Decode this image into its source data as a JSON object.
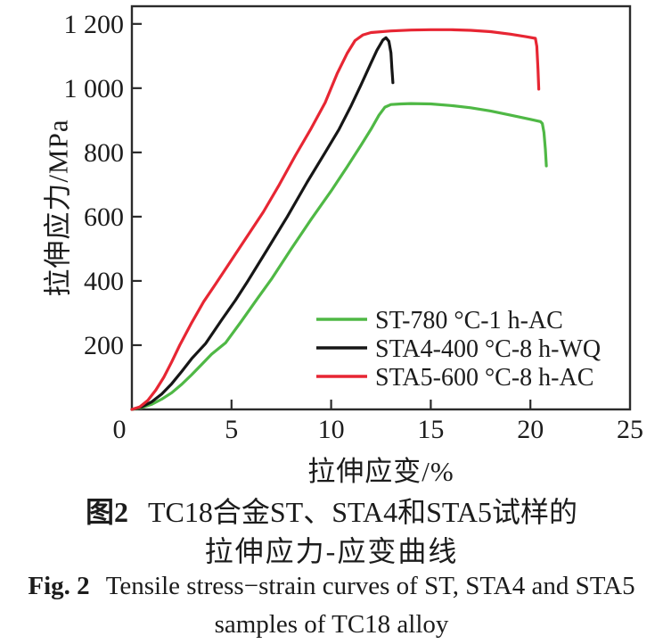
{
  "chart_data": {
    "type": "line",
    "title": "",
    "xlabel": "拉伸应变/%",
    "ylabel": "拉伸应力/MPa",
    "xlim": [
      0,
      25
    ],
    "ylim": [
      0,
      1255
    ],
    "x_ticks": [
      0,
      5,
      10,
      15,
      20,
      25
    ],
    "x_tick_labels": [
      "0",
      "5",
      "10",
      "15",
      "20",
      "25"
    ],
    "y_ticks": [
      200,
      400,
      600,
      800,
      1000,
      1200
    ],
    "y_tick_labels": [
      "200",
      "400",
      "600",
      "800",
      "1 000",
      "1 200"
    ],
    "grid": false,
    "frame_color": "#2b2b2b",
    "legend_position": "inside-bottom-right",
    "series": [
      {
        "id": "st-780",
        "name": "ST-780 °C-1 h-AC",
        "color": "#4fb845",
        "points": [
          [
            0,
            0
          ],
          [
            0.5,
            6
          ],
          [
            1,
            16
          ],
          [
            1.5,
            32
          ],
          [
            2,
            52
          ],
          [
            2.5,
            78
          ],
          [
            3,
            108
          ],
          [
            3.5,
            140
          ],
          [
            4,
            172
          ],
          [
            4.7,
            207
          ],
          [
            5.5,
            275
          ],
          [
            6.3,
            345
          ],
          [
            7,
            405
          ],
          [
            8,
            500
          ],
          [
            9,
            592
          ],
          [
            10,
            680
          ],
          [
            10.8,
            755
          ],
          [
            11.5,
            822
          ],
          [
            12,
            872
          ],
          [
            12.4,
            916
          ],
          [
            12.7,
            941
          ],
          [
            13,
            949
          ],
          [
            13.5,
            951
          ],
          [
            14,
            952
          ],
          [
            15,
            951
          ],
          [
            16,
            946
          ],
          [
            17,
            939
          ],
          [
            18,
            929
          ],
          [
            19,
            916
          ],
          [
            20,
            903
          ],
          [
            20.5,
            896
          ],
          [
            20.6,
            890
          ],
          [
            20.68,
            862
          ],
          [
            20.75,
            810
          ],
          [
            20.8,
            758
          ]
        ]
      },
      {
        "id": "sta4-400",
        "name": "STA4-400 °C-8 h-WQ",
        "color": "#161616",
        "points": [
          [
            0,
            0
          ],
          [
            0.5,
            8
          ],
          [
            1,
            24
          ],
          [
            1.5,
            48
          ],
          [
            2,
            80
          ],
          [
            2.5,
            118
          ],
          [
            3,
            158
          ],
          [
            3.7,
            205
          ],
          [
            4.5,
            278
          ],
          [
            5.2,
            340
          ],
          [
            5.8,
            398
          ],
          [
            6.8,
            498
          ],
          [
            7.8,
            600
          ],
          [
            8.8,
            708
          ],
          [
            9.7,
            800
          ],
          [
            10.4,
            872
          ],
          [
            11,
            945
          ],
          [
            11.5,
            1010
          ],
          [
            12,
            1078
          ],
          [
            12.3,
            1118
          ],
          [
            12.6,
            1150
          ],
          [
            12.75,
            1157
          ],
          [
            12.9,
            1146
          ],
          [
            13,
            1110
          ],
          [
            13.05,
            1060
          ],
          [
            13.1,
            1017
          ]
        ]
      },
      {
        "id": "sta5-600",
        "name": "STA5-600 °C-8 h-AC",
        "color": "#e72633",
        "points": [
          [
            0,
            0
          ],
          [
            0.4,
            8
          ],
          [
            0.8,
            28
          ],
          [
            1.2,
            60
          ],
          [
            1.6,
            100
          ],
          [
            2,
            148
          ],
          [
            2.4,
            200
          ],
          [
            3,
            270
          ],
          [
            3.6,
            335
          ],
          [
            4.2,
            390
          ],
          [
            5,
            465
          ],
          [
            5.8,
            540
          ],
          [
            6.6,
            615
          ],
          [
            7.4,
            700
          ],
          [
            8.2,
            790
          ],
          [
            9,
            875
          ],
          [
            9.7,
            955
          ],
          [
            10.3,
            1045
          ],
          [
            10.8,
            1108
          ],
          [
            11.2,
            1148
          ],
          [
            11.6,
            1166
          ],
          [
            12,
            1173
          ],
          [
            13,
            1178
          ],
          [
            14,
            1181
          ],
          [
            15,
            1182
          ],
          [
            16,
            1182
          ],
          [
            17,
            1180
          ],
          [
            18,
            1176
          ],
          [
            19,
            1168
          ],
          [
            19.8,
            1160
          ],
          [
            20.25,
            1155
          ],
          [
            20.32,
            1130
          ],
          [
            20.38,
            1060
          ],
          [
            20.42,
            997
          ]
        ]
      }
    ]
  },
  "captions": {
    "zh_label": "图2",
    "zh_line1": "TC18合金ST、STA4和STA5试样的",
    "zh_line2": "拉伸应力-应变曲线",
    "en_label": "Fig. 2",
    "en_line1": "Tensile stress−strain curves of ST, STA4 and STA5",
    "en_line2": "samples of TC18 alloy"
  }
}
